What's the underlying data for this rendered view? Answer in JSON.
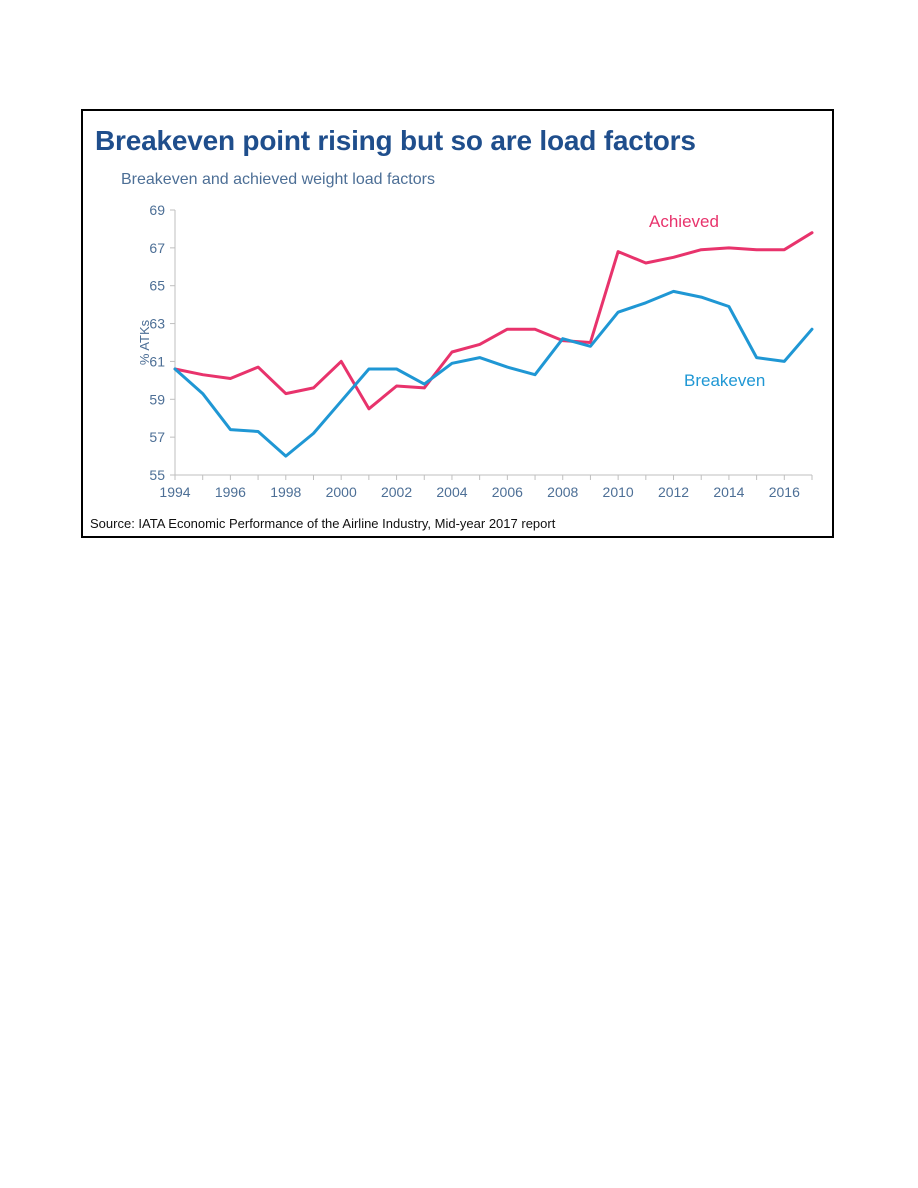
{
  "chart_data": {
    "type": "line",
    "title": "Breakeven point rising but so are load factors",
    "subtitle": "Breakeven and achieved weight load factors",
    "xlabel": "",
    "ylabel": "% ATKs",
    "xlim": [
      1994,
      2017
    ],
    "ylim": [
      55,
      69
    ],
    "x_ticks": [
      "1994",
      "1996",
      "1998",
      "2000",
      "2002",
      "2004",
      "2006",
      "2008",
      "2010",
      "2012",
      "2014",
      "2016"
    ],
    "y_ticks": [
      "55",
      "57",
      "59",
      "61",
      "63",
      "65",
      "67",
      "69"
    ],
    "grid": false,
    "x": [
      1994,
      1995,
      1996,
      1997,
      1998,
      1999,
      2000,
      2001,
      2002,
      2003,
      2004,
      2005,
      2006,
      2007,
      2008,
      2009,
      2010,
      2011,
      2012,
      2013,
      2014,
      2015,
      2016,
      2017
    ],
    "series": [
      {
        "name": "Achieved",
        "color": "#e8336c",
        "values": [
          60.6,
          60.3,
          60.1,
          60.7,
          59.3,
          59.6,
          61.0,
          58.5,
          59.7,
          59.6,
          61.5,
          61.9,
          62.7,
          62.7,
          62.1,
          62.0,
          66.8,
          66.2,
          66.5,
          66.9,
          67.0,
          66.9,
          66.9,
          67.8
        ]
      },
      {
        "name": "Breakeven",
        "color": "#1f97d4",
        "values": [
          60.6,
          59.3,
          57.4,
          57.3,
          56.0,
          57.2,
          58.9,
          60.6,
          60.6,
          59.8,
          60.9,
          61.2,
          60.7,
          60.3,
          62.2,
          61.8,
          63.6,
          64.1,
          64.7,
          64.4,
          63.9,
          61.2,
          61.0,
          62.7
        ]
      }
    ],
    "source": "Source: IATA Economic Performance of the Airline Industry, Mid-year 2017 report"
  }
}
